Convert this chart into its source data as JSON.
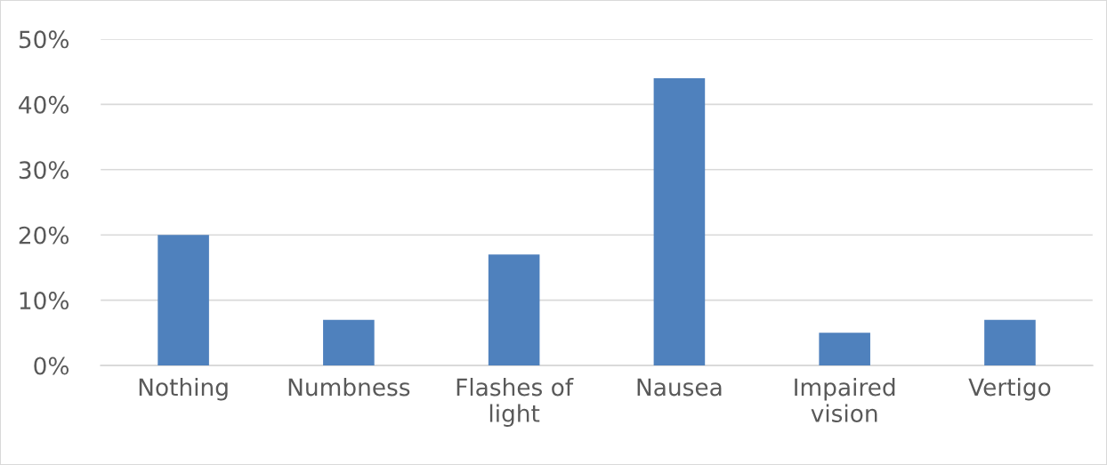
{
  "chart_data": {
    "type": "bar",
    "categories": [
      "Nothing",
      "Numbness",
      "Flashes of\nlight",
      "Nausea",
      "Impaired\nvision",
      "Vertigo"
    ],
    "values": [
      20,
      7,
      17,
      44,
      5,
      7
    ],
    "color": "#4f81bd",
    "ylim": [
      0,
      50
    ],
    "yticks": [
      {
        "value": 0,
        "label": "0%"
      },
      {
        "value": 10,
        "label": "10%"
      },
      {
        "value": 20,
        "label": "20%"
      },
      {
        "value": 30,
        "label": "30%"
      },
      {
        "value": 40,
        "label": "40%"
      },
      {
        "value": 50,
        "label": "50%"
      }
    ],
    "grid": "y",
    "legend": false
  }
}
